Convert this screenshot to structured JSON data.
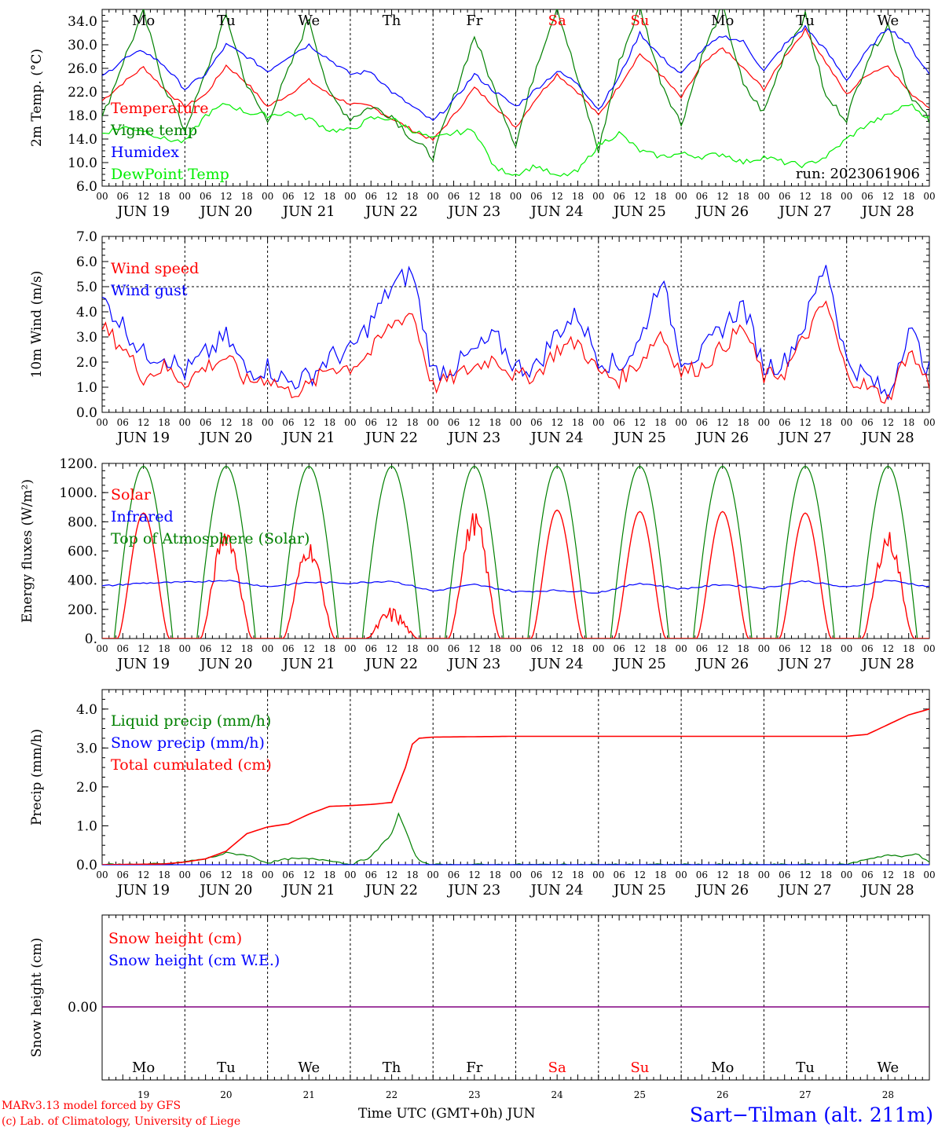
{
  "chart_data": [
    {
      "type": "line",
      "ylabel": "2m Temp. (°C)",
      "ylim": [
        6.0,
        36.0
      ],
      "yticks": [
        "6.0",
        "10.0",
        "14.0",
        "18.0",
        "22.0",
        "26.0",
        "30.0",
        "34.0"
      ],
      "annotation": "run: 2023061906",
      "x_unit": "hours since JUN 19 00 UTC",
      "series": [
        {
          "name": "Temperature",
          "color": "#ff0000",
          "x": [
            0,
            6,
            12,
            18,
            24,
            30,
            36,
            42,
            48,
            54,
            60,
            66,
            72,
            78,
            84,
            90,
            96,
            102,
            108,
            114,
            120,
            126,
            132,
            138,
            144,
            150,
            156,
            162,
            168,
            174,
            180,
            186,
            192,
            198,
            204,
            210,
            216,
            222,
            228,
            234,
            240
          ],
          "y": [
            20.5,
            23.5,
            26.2,
            22.5,
            19.5,
            21.5,
            26.5,
            23.5,
            19.5,
            21.5,
            24.0,
            21.5,
            20.0,
            19.5,
            17.5,
            15.5,
            13.8,
            18.0,
            22.7,
            19.5,
            16.0,
            21.0,
            25.0,
            22.0,
            18.0,
            23.0,
            28.5,
            25.0,
            21.0,
            26.5,
            29.5,
            26.0,
            22.5,
            28.0,
            32.5,
            27.0,
            21.5,
            25.0,
            26.5,
            22.0,
            19.5
          ]
        },
        {
          "name": "Vigne temp",
          "color": "#008000",
          "x": [
            0,
            6,
            12,
            18,
            24,
            30,
            36,
            42,
            48,
            54,
            60,
            66,
            72,
            78,
            84,
            90,
            96,
            102,
            108,
            114,
            120,
            126,
            132,
            138,
            144,
            150,
            156,
            162,
            168,
            174,
            180,
            186,
            192,
            198,
            204,
            210,
            216,
            222,
            228,
            234,
            240
          ],
          "y": [
            17.5,
            27.0,
            35.5,
            23.0,
            15.5,
            25.0,
            35.0,
            23.0,
            17.0,
            25.5,
            34.5,
            21.5,
            17.5,
            19.5,
            18.0,
            14.0,
            11.0,
            21.0,
            31.5,
            22.0,
            13.0,
            26.5,
            36.5,
            24.0,
            12.0,
            27.0,
            36.5,
            24.0,
            16.5,
            28.0,
            36.5,
            23.0,
            18.5,
            28.5,
            35.0,
            21.0,
            17.5,
            27.5,
            33.5,
            22.0,
            17.0
          ]
        },
        {
          "name": "Humidex",
          "color": "#0000ff",
          "x": [
            0,
            6,
            12,
            18,
            24,
            30,
            36,
            42,
            48,
            54,
            60,
            66,
            72,
            78,
            84,
            90,
            96,
            102,
            108,
            114,
            120,
            126,
            132,
            138,
            144,
            150,
            156,
            162,
            168,
            174,
            180,
            186,
            192,
            198,
            204,
            210,
            216,
            222,
            228,
            234,
            240
          ],
          "y": [
            24.5,
            27.5,
            29.0,
            26.5,
            22.5,
            25.0,
            30.0,
            28.0,
            25.5,
            28.0,
            30.0,
            27.5,
            25.0,
            25.5,
            22.0,
            19.5,
            17.0,
            20.5,
            25.0,
            22.0,
            19.5,
            22.5,
            25.5,
            23.5,
            19.0,
            24.5,
            32.0,
            28.0,
            25.0,
            29.0,
            31.5,
            30.5,
            25.5,
            30.0,
            33.0,
            29.0,
            24.0,
            29.0,
            33.0,
            30.0,
            25.0
          ]
        },
        {
          "name": "DewPoint Temp",
          "color": "#00ee00",
          "x": [
            0,
            6,
            12,
            18,
            24,
            30,
            36,
            42,
            48,
            54,
            60,
            66,
            72,
            78,
            84,
            90,
            96,
            102,
            108,
            114,
            120,
            126,
            132,
            138,
            144,
            150,
            156,
            162,
            168,
            174,
            180,
            186,
            192,
            198,
            204,
            210,
            216,
            222,
            228,
            234,
            240
          ],
          "y": [
            15.0,
            16.0,
            15.5,
            14.0,
            13.5,
            18.0,
            20.0,
            18.5,
            18.0,
            18.5,
            17.5,
            15.5,
            15.5,
            17.5,
            17.5,
            15.5,
            14.0,
            15.0,
            15.5,
            9.0,
            8.0,
            9.5,
            7.5,
            8.5,
            13.0,
            15.0,
            12.0,
            11.0,
            11.5,
            11.0,
            11.5,
            10.0,
            11.0,
            10.0,
            9.5,
            11.0,
            14.0,
            16.5,
            18.0,
            20.0,
            17.5
          ]
        }
      ]
    },
    {
      "type": "line",
      "ylabel": "10m Wind (m/s)",
      "ylim": [
        0.0,
        7.0
      ],
      "yticks": [
        "0.0",
        "1.0",
        "2.0",
        "3.0",
        "4.0",
        "5.0",
        "6.0",
        "7.0"
      ],
      "x_unit": "hours since JUN 19 00 UTC",
      "series": [
        {
          "name": "Wind speed",
          "color": "#ff0000",
          "x": [
            0,
            6,
            12,
            18,
            24,
            30,
            36,
            42,
            48,
            54,
            60,
            66,
            72,
            78,
            84,
            90,
            96,
            102,
            108,
            114,
            120,
            126,
            132,
            138,
            144,
            150,
            156,
            162,
            168,
            174,
            180,
            186,
            192,
            198,
            204,
            210,
            216,
            222,
            228,
            234,
            240
          ],
          "y": [
            3.4,
            2.6,
            1.4,
            1.8,
            1.2,
            1.8,
            2.2,
            1.2,
            1.4,
            0.8,
            1.0,
            1.8,
            1.8,
            2.4,
            3.5,
            4.0,
            1.0,
            1.4,
            1.8,
            2.2,
            1.4,
            1.5,
            2.5,
            2.8,
            1.6,
            1.3,
            2.0,
            3.2,
            1.6,
            1.8,
            2.6,
            3.4,
            1.4,
            1.6,
            3.0,
            4.4,
            1.5,
            1.0,
            0.5,
            2.5,
            1.1
          ]
        },
        {
          "name": "Wind gust",
          "color": "#0000ff",
          "x": [
            0,
            6,
            12,
            18,
            24,
            30,
            36,
            42,
            48,
            54,
            60,
            66,
            72,
            78,
            84,
            90,
            96,
            102,
            108,
            114,
            120,
            126,
            132,
            138,
            144,
            150,
            156,
            162,
            168,
            174,
            180,
            186,
            192,
            198,
            204,
            210,
            216,
            222,
            228,
            234,
            240
          ],
          "y": [
            4.5,
            3.5,
            2.3,
            2.3,
            1.6,
            2.3,
            3.0,
            1.6,
            1.8,
            1.2,
            1.4,
            2.2,
            2.4,
            3.6,
            5.0,
            5.6,
            1.6,
            1.8,
            2.4,
            3.0,
            1.8,
            1.8,
            3.2,
            3.9,
            2.2,
            1.8,
            2.8,
            5.4,
            2.2,
            2.3,
            3.4,
            4.3,
            1.8,
            2.0,
            3.6,
            6.0,
            2.0,
            1.4,
            0.6,
            3.4,
            1.6
          ]
        }
      ]
    },
    {
      "type": "line",
      "ylabel": "Energy fluxes (W/m²)",
      "ylim": [
        0.0,
        1200.0
      ],
      "yticks": [
        "0.",
        "200.",
        "400.",
        "600.",
        "800.",
        "1000.",
        "1200."
      ],
      "x_unit": "hours since JUN 19 00 UTC",
      "series": [
        {
          "name": "Solar",
          "color": "#ff0000",
          "daily_max": [
            860,
            770,
            660,
            200,
            860,
            880,
            870,
            870,
            860,
            730
          ]
        },
        {
          "name": "Infrared",
          "color": "#0000ff",
          "x": [
            0,
            12,
            24,
            36,
            48,
            60,
            72,
            84,
            96,
            108,
            120,
            132,
            144,
            156,
            168,
            180,
            192,
            204,
            216,
            228,
            240
          ],
          "y": [
            360,
            380,
            385,
            400,
            355,
            385,
            380,
            395,
            325,
            370,
            320,
            330,
            315,
            380,
            340,
            370,
            345,
            395,
            350,
            400,
            355
          ]
        },
        {
          "name": "Top of Atmosphere (Solar)",
          "color": "#008000",
          "daily_max": [
            1180,
            1180,
            1180,
            1180,
            1180,
            1180,
            1180,
            1180,
            1180,
            1180
          ]
        }
      ]
    },
    {
      "type": "line",
      "ylabel": "Precip (mm/h)",
      "ylim": [
        0.0,
        4.5
      ],
      "yticks": [
        "0.0",
        "1.0",
        "2.0",
        "3.0",
        "4.0"
      ],
      "x_unit": "hours since JUN 19 00 UTC",
      "series": [
        {
          "name": "Liquid precip (mm/h)",
          "color": "#008000",
          "x": [
            0,
            20,
            24,
            30,
            36,
            42,
            48,
            54,
            60,
            66,
            72,
            78,
            84,
            86,
            88,
            90,
            92,
            96,
            216,
            222,
            228,
            232,
            236,
            240
          ],
          "y": [
            0,
            0.02,
            0.08,
            0.15,
            0.3,
            0.25,
            0.05,
            0.15,
            0.15,
            0.12,
            0,
            0.2,
            0.8,
            1.3,
            0.9,
            0.4,
            0.1,
            0,
            0,
            0.15,
            0.25,
            0.2,
            0.3,
            0.05
          ]
        },
        {
          "name": "Snow precip (mm/h)",
          "color": "#0000ff",
          "x": [
            0,
            240
          ],
          "y": [
            0,
            0
          ]
        },
        {
          "name": "Total cumulated (cm)",
          "color": "#ff0000",
          "x": [
            0,
            18,
            24,
            30,
            36,
            42,
            48,
            54,
            60,
            66,
            72,
            78,
            84,
            88,
            90,
            92,
            96,
            120,
            216,
            222,
            228,
            234,
            240
          ],
          "y": [
            0,
            0.02,
            0.07,
            0.15,
            0.35,
            0.8,
            0.97,
            1.05,
            1.3,
            1.5,
            1.52,
            1.55,
            1.6,
            2.5,
            3.1,
            3.25,
            3.28,
            3.3,
            3.3,
            3.35,
            3.6,
            3.85,
            4.0
          ]
        }
      ]
    },
    {
      "type": "line",
      "ylabel": "Snow height (cm)",
      "yticks": [
        "0.00"
      ],
      "x_unit": "hours since JUN 19 00 UTC",
      "series": [
        {
          "name": "Snow height (cm)",
          "color": "#ff0000",
          "x": [
            0,
            240
          ],
          "y": [
            0,
            0
          ]
        },
        {
          "name": "Snow height (cm W.E.)",
          "color": "#0000ff",
          "x": [
            0,
            240
          ],
          "y": [
            0,
            0
          ]
        }
      ]
    }
  ],
  "x_axis": {
    "hour_labels": [
      "00",
      "06",
      "12",
      "18"
    ],
    "end_label": "00",
    "dates": [
      "JUN 19",
      "JUN 20",
      "JUN 21",
      "JUN 22",
      "JUN 23",
      "JUN 24",
      "JUN 25",
      "JUN 26",
      "JUN 27",
      "JUN 28"
    ],
    "weekdays": [
      {
        "label": "Mo",
        "weekend": false
      },
      {
        "label": "Tu",
        "weekend": false
      },
      {
        "label": "We",
        "weekend": false
      },
      {
        "label": "Th",
        "weekend": false
      },
      {
        "label": "Fr",
        "weekend": false
      },
      {
        "label": "Sa",
        "weekend": true
      },
      {
        "label": "Su",
        "weekend": true
      },
      {
        "label": "Mo",
        "weekend": false
      },
      {
        "label": "Tu",
        "weekend": false
      },
      {
        "label": "We",
        "weekend": false
      }
    ],
    "day_numbers": [
      "19",
      "20",
      "21",
      "22",
      "23",
      "24",
      "25",
      "26",
      "27",
      "28"
    ],
    "title": "Time UTC (GMT+0h) JUN"
  },
  "footer": {
    "credit_line1": "MARv3.13 model forced by GFS",
    "credit_line2": "(c) Lab. of Climatology, University of Liege",
    "station": "Sart−Tilman (alt. 211m)"
  },
  "colors": {
    "red": "#ff0000",
    "green": "#008000",
    "blue": "#0000ff",
    "light_green": "#00ee00",
    "weekend": "#ff0000",
    "purple": "#800080"
  }
}
